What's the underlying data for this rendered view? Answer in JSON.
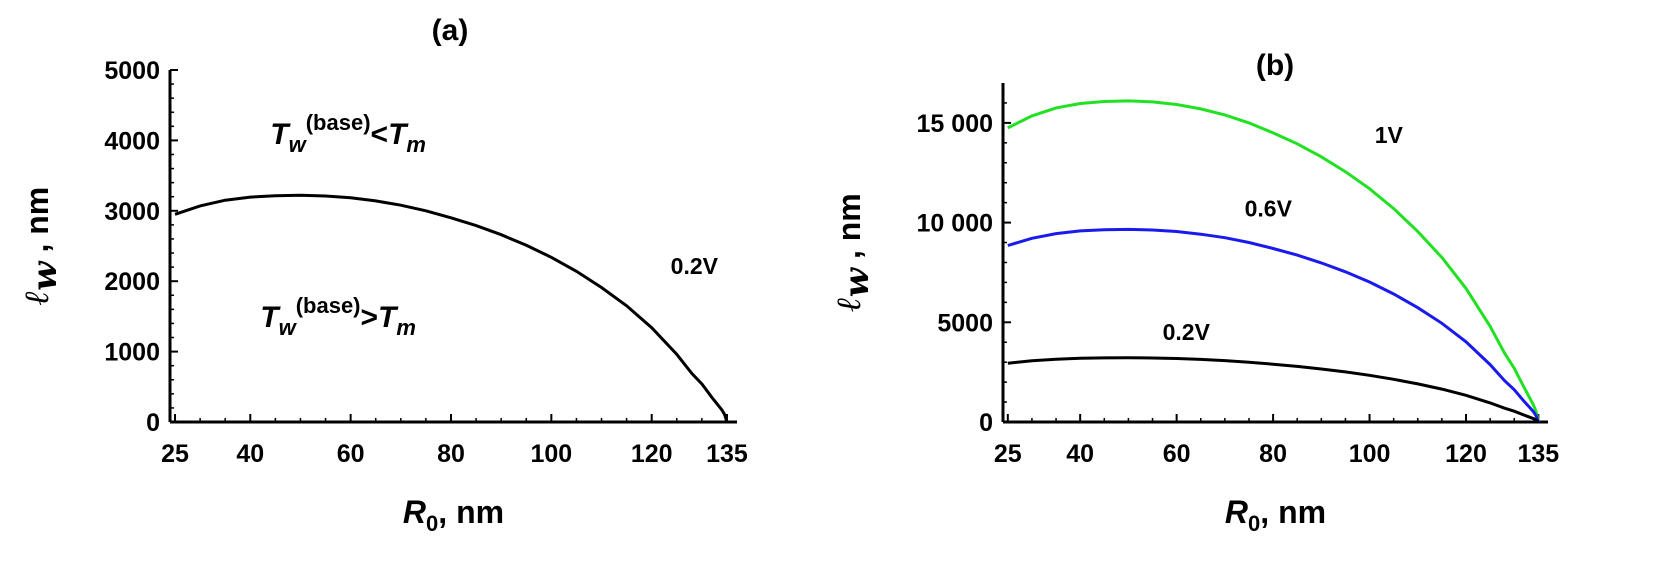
{
  "chart_data": [
    {
      "type": "line",
      "title": "(a)",
      "xlabel_main": "R",
      "xlabel_sub": "0",
      "xlabel_unit": ", nm",
      "ylabel_main": "ℓ",
      "ylabel_sub": "w",
      "ylabel_unit": " , nm",
      "xlim": [
        24,
        137
      ],
      "ylim": [
        0,
        5000
      ],
      "xticks": [
        25,
        40,
        60,
        80,
        100,
        120,
        135
      ],
      "yticks": [
        0,
        1000,
        2000,
        3000,
        4000,
        5000
      ],
      "ytick_labels": [
        "0",
        "1000",
        "2000",
        "3000",
        "4000",
        "5000"
      ],
      "series": [
        {
          "name": "0.2V",
          "color": "#000000",
          "label_x": 128.5,
          "label_y": 2100,
          "x": [
            25,
            30,
            35,
            40,
            45,
            50,
            55,
            60,
            65,
            70,
            75,
            80,
            85,
            90,
            95,
            100,
            105,
            110,
            115,
            120,
            125,
            128,
            130,
            132,
            133,
            134,
            134.5,
            135
          ],
          "y": [
            2950,
            3070,
            3150,
            3195,
            3215,
            3220,
            3210,
            3185,
            3140,
            3080,
            3000,
            2900,
            2790,
            2660,
            2510,
            2340,
            2140,
            1910,
            1650,
            1340,
            960,
            690,
            540,
            350,
            260,
            170,
            110,
            0
          ]
        }
      ],
      "annotations": [
        {
          "main": "T",
          "sub": "w",
          "sup": "(base)",
          "rel": "<",
          "rhs": "T",
          "rhs_sub": "m",
          "x": 59.5,
          "y": 3950
        },
        {
          "main": "T",
          "sub": "w",
          "sup": "(base)",
          "rel": ">",
          "rhs": "T",
          "rhs_sub": "m",
          "x": 57.5,
          "y": 1350
        }
      ]
    },
    {
      "type": "line",
      "title": "(b)",
      "xlabel_main": "R",
      "xlabel_sub": "0",
      "xlabel_unit": ", nm",
      "ylabel_main": "ℓ",
      "ylabel_sub": "w",
      "ylabel_unit": " , nm",
      "xlim": [
        24,
        137
      ],
      "ylim": [
        0,
        17000
      ],
      "xticks": [
        25,
        40,
        60,
        80,
        100,
        120,
        135
      ],
      "yticks": [
        0,
        5000,
        10000,
        15000
      ],
      "ytick_labels": [
        "0",
        "5000",
        "10 000",
        "15 000"
      ],
      "series": [
        {
          "name": "1V",
          "color": "#22e022",
          "label_x": 104,
          "label_y": 14000,
          "x": [
            25,
            30,
            35,
            40,
            45,
            50,
            55,
            60,
            65,
            70,
            75,
            80,
            85,
            90,
            95,
            100,
            105,
            110,
            115,
            120,
            125,
            128,
            130,
            132,
            133,
            134,
            134.5,
            135
          ],
          "y": [
            14750,
            15350,
            15750,
            15970,
            16070,
            16100,
            16050,
            15920,
            15700,
            15400,
            15000,
            14500,
            13950,
            13300,
            12550,
            11700,
            10700,
            9550,
            8250,
            6700,
            4800,
            3450,
            2700,
            1750,
            1300,
            850,
            550,
            0
          ]
        },
        {
          "name": "0.6V",
          "color": "#1a1aee",
          "label_x": 79,
          "label_y": 10300,
          "x": [
            25,
            30,
            35,
            40,
            45,
            50,
            55,
            60,
            65,
            70,
            75,
            80,
            85,
            90,
            95,
            100,
            105,
            110,
            115,
            120,
            125,
            128,
            130,
            132,
            133,
            134,
            134.5,
            135
          ],
          "y": [
            8850,
            9210,
            9450,
            9585,
            9645,
            9660,
            9630,
            9555,
            9420,
            9240,
            9000,
            8700,
            8370,
            7980,
            7530,
            7020,
            6420,
            5730,
            4950,
            4020,
            2880,
            2070,
            1620,
            1050,
            780,
            510,
            330,
            0
          ]
        },
        {
          "name": "0.2V",
          "color": "#000000",
          "label_x": 62,
          "label_y": 4100,
          "x": [
            25,
            30,
            35,
            40,
            45,
            50,
            55,
            60,
            65,
            70,
            75,
            80,
            85,
            90,
            95,
            100,
            105,
            110,
            115,
            120,
            125,
            128,
            130,
            132,
            133,
            134,
            134.5,
            135
          ],
          "y": [
            2950,
            3070,
            3150,
            3195,
            3215,
            3220,
            3210,
            3185,
            3140,
            3080,
            3000,
            2900,
            2790,
            2660,
            2510,
            2340,
            2140,
            1910,
            1650,
            1340,
            960,
            690,
            540,
            350,
            260,
            170,
            110,
            0
          ]
        }
      ]
    }
  ]
}
